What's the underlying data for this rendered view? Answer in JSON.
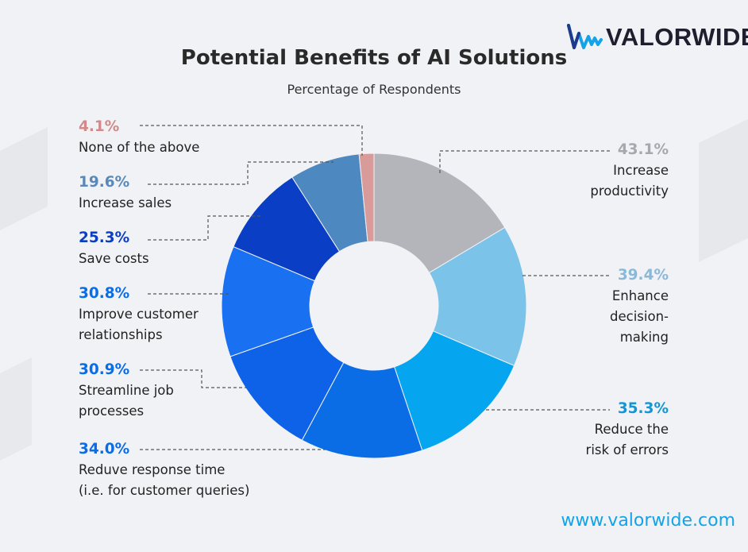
{
  "brand": {
    "name": "VALORWIDE",
    "logo_icon": "wave-logo-icon",
    "website": "www.valorwide.com",
    "accent": "#13a3e6"
  },
  "chart_data": {
    "type": "pie",
    "variant": "donut",
    "title": "Potential Benefits of AI Solutions",
    "subtitle": "Percentage of Respondents",
    "unit": "%",
    "slices": [
      {
        "label": "Increase productivity",
        "value": 43.1,
        "display": "43.1%",
        "color": "#b4b5bb"
      },
      {
        "label": "Enhance decision-making",
        "value": 39.4,
        "display": "39.4%",
        "color": "#7cc3ea"
      },
      {
        "label": "Reduce the risk of errors",
        "value": 35.3,
        "display": "35.3%",
        "color": "#05a6ef"
      },
      {
        "label": "Reduve response time (i.e. for customer queries)",
        "value": 34.0,
        "display": "34.0%",
        "color": "#0a6de6"
      },
      {
        "label": "Streamline job processes",
        "value": 30.9,
        "display": "30.9%",
        "color": "#0e62e8"
      },
      {
        "label": "Improve customer relationships",
        "value": 30.8,
        "display": "30.8%",
        "color": "#1970f0"
      },
      {
        "label": "Save costs",
        "value": 25.3,
        "display": "25.3%",
        "color": "#0a3ec4"
      },
      {
        "label": "Increase sales",
        "value": 19.6,
        "display": "19.6%",
        "color": "#4e88c0"
      },
      {
        "label": "None of the above",
        "value": 4.1,
        "display": "4.1%",
        "color": "#d99a9a"
      }
    ],
    "legend": "callout-labels"
  },
  "labels": {
    "none": {
      "pct": "4.1%",
      "line1": "None of the above",
      "color": "#d08a8a"
    },
    "sales": {
      "pct": "19.6%",
      "line1": "Increase sales",
      "color": "#5a88b8"
    },
    "costs": {
      "pct": "25.3%",
      "line1": "Save costs",
      "color": "#0a3ec4"
    },
    "cust": {
      "pct": "30.8%",
      "line1": "Improve customer",
      "line2": "relationships",
      "color": "#0a6de6"
    },
    "stream": {
      "pct": "30.9%",
      "line1": "Streamline job",
      "line2": "processes",
      "color": "#0a6de6"
    },
    "response": {
      "pct": "34.0%",
      "line1": "Reduve response time",
      "line2": "(i.e. for customer queries)",
      "color": "#0a6de6"
    },
    "prod": {
      "pct": "43.1%",
      "line1": "Increase",
      "line2": "productivity",
      "color": "#a7a8ae"
    },
    "decision": {
      "pct": "39.4%",
      "line1": "Enhance",
      "line2": "decision-",
      "line3": "making",
      "color": "#8ab8d8"
    },
    "errors": {
      "pct": "35.3%",
      "line1": "Reduce the",
      "line2": "risk of errors",
      "color": "#1596d4"
    }
  }
}
